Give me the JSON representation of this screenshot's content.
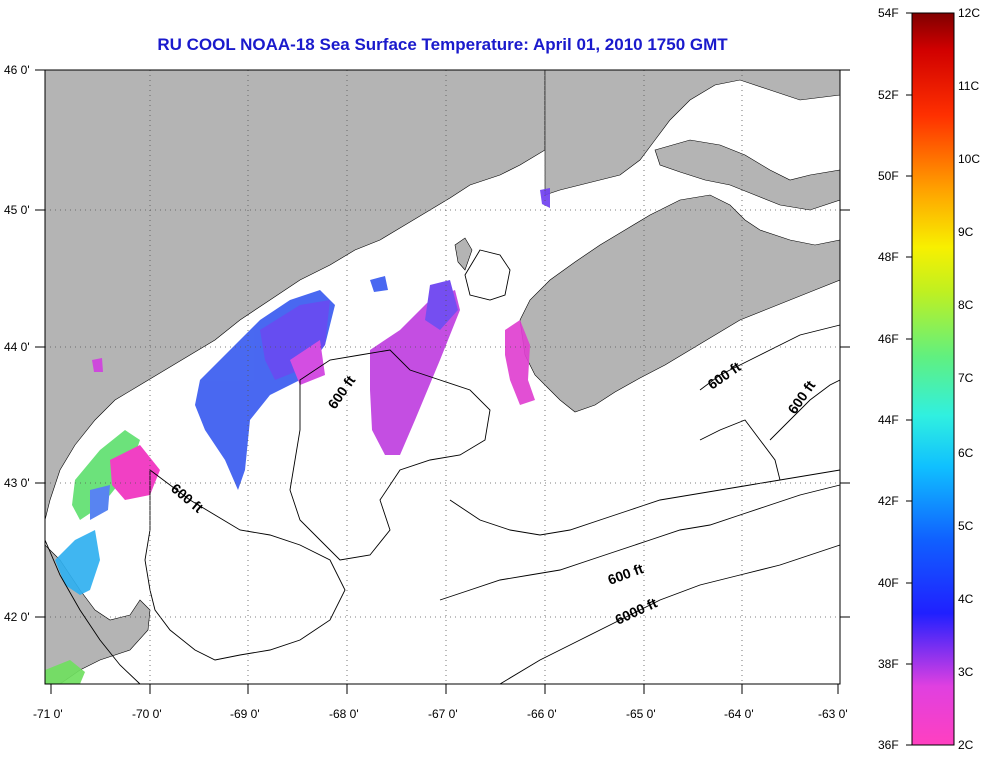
{
  "title": "RU COOL  NOAA-18  Sea Surface Temperature:  April 01, 2010 1750 GMT",
  "lat_labels": [
    "46 0'",
    "45 0'",
    "44 0'",
    "43 0'",
    "42 0'"
  ],
  "lon_labels": [
    "-71 0'",
    "-70 0'",
    "-69 0'",
    "-68 0'",
    "-67 0'",
    "-66 0'",
    "-65 0'",
    "-64 0'",
    "-63 0'"
  ],
  "contour_labels": [
    "600 ft",
    "600 ft",
    "600 ft",
    "600 ft",
    "600 ft",
    "6000 ft"
  ],
  "colorbar": {
    "fahrenheit": [
      "54F",
      "52F",
      "50F",
      "48F",
      "46F",
      "44F",
      "42F",
      "40F",
      "38F",
      "36F"
    ],
    "celsius": [
      "12C",
      "11C",
      "10C",
      "9C",
      "8C",
      "7C",
      "6C",
      "5C",
      "4C",
      "3C",
      "2C"
    ]
  },
  "colors": {
    "land": "#b4b4b4",
    "title": "#1a1acc"
  }
}
